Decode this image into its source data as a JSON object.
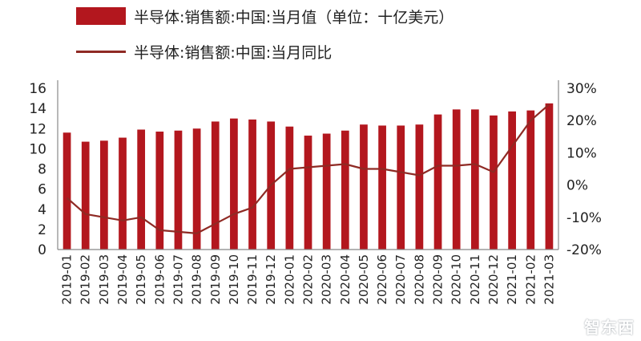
{
  "legend": {
    "bar_label": "半导体:销售额:中国:当月值（单位：十亿美元）",
    "line_label": "半导体:销售额:中国:当月同比"
  },
  "watermark": "智东西",
  "colors": {
    "bar": "#b3171e",
    "line": "#8f2a24",
    "axis": "#888888"
  },
  "chart_data": {
    "type": "bar",
    "categories": [
      "2019-01",
      "2019-02",
      "2019-03",
      "2019-04",
      "2019-05",
      "2019-06",
      "2019-07",
      "2019-08",
      "2019-09",
      "2019-10",
      "2019-11",
      "2019-12",
      "2020-01",
      "2020-02",
      "2020-03",
      "2020-04",
      "2020-05",
      "2020-06",
      "2020-07",
      "2020-08",
      "2020-09",
      "2020-10",
      "2020-11",
      "2020-12",
      "2021-01",
      "2021-02",
      "2021-03"
    ],
    "series": [
      {
        "name": "半导体:销售额:中国:当月值（单位：十亿美元）",
        "type": "bar",
        "axis": "left",
        "values": [
          11.6,
          10.7,
          10.8,
          11.1,
          11.9,
          11.7,
          11.8,
          12.0,
          12.7,
          13.0,
          12.9,
          12.7,
          12.2,
          11.3,
          11.5,
          11.8,
          12.4,
          12.3,
          12.3,
          12.4,
          13.4,
          13.9,
          13.9,
          13.3,
          13.7,
          13.8,
          14.5
        ]
      },
      {
        "name": "半导体:销售额:中国:当月同比",
        "type": "line",
        "axis": "right",
        "unit": "%",
        "values": [
          -4,
          -9,
          -10,
          -11,
          -10,
          -14,
          -14.5,
          -15,
          -12,
          -9,
          -7,
          0,
          5,
          5.5,
          6,
          6.5,
          5,
          5,
          4,
          3,
          6,
          6,
          6.5,
          4,
          12,
          20,
          25
        ]
      }
    ],
    "ylim_left": [
      0,
      16
    ],
    "yticks_left": [
      0,
      2,
      4,
      6,
      8,
      10,
      12,
      14,
      16
    ],
    "ylim_right": [
      -20,
      30
    ],
    "yticks_right": [
      -20,
      -10,
      0,
      10,
      20,
      30
    ],
    "ytick_labels_right": [
      "-20%",
      "-10%",
      "0%",
      "10%",
      "20%",
      "30%"
    ],
    "grid": false,
    "legend_position": "top"
  }
}
